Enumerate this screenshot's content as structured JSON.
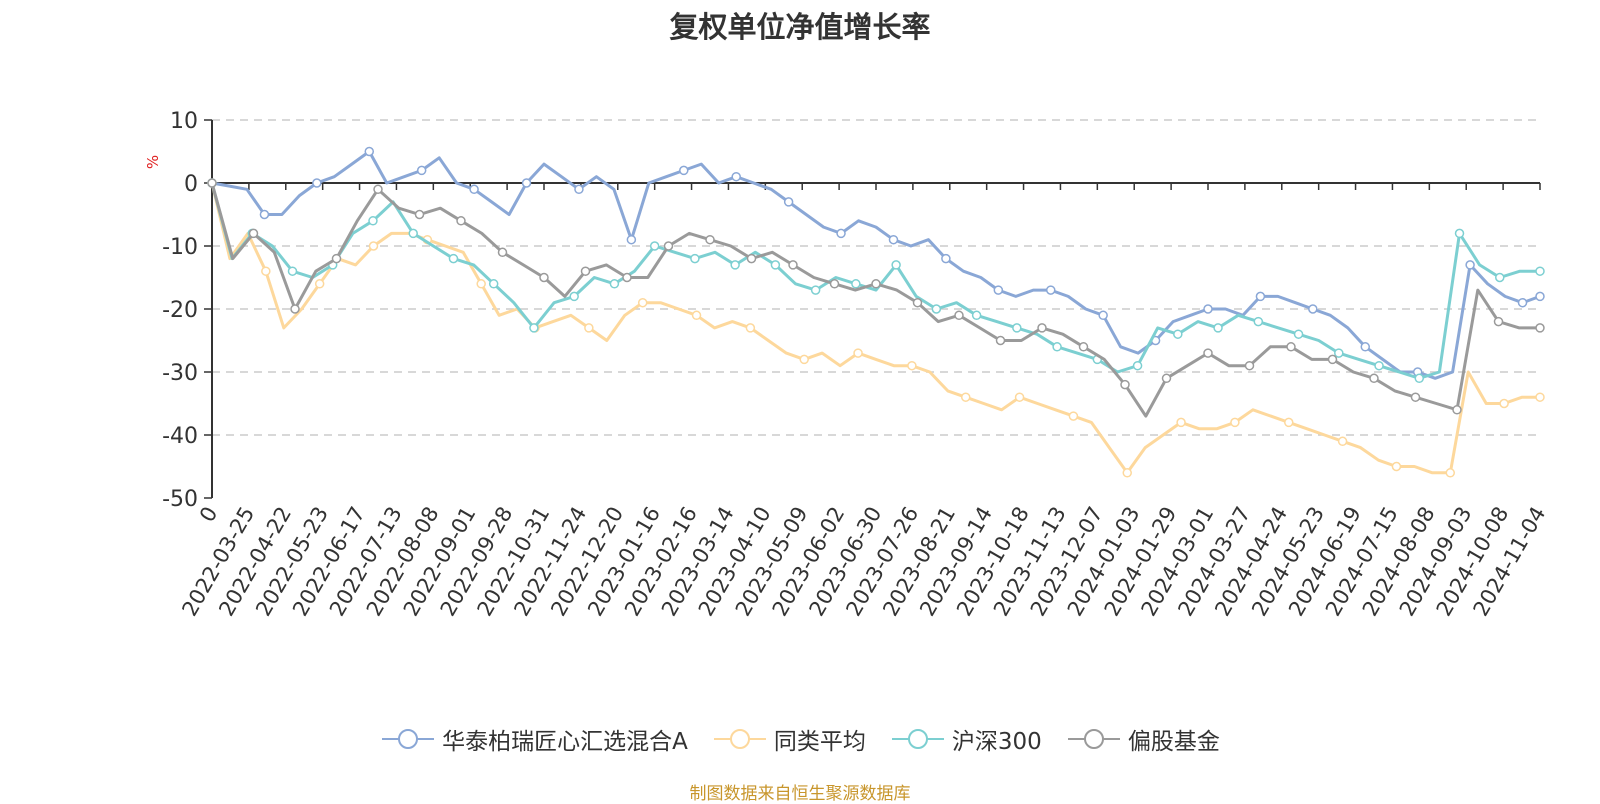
{
  "chart_data": {
    "type": "line",
    "title": "复权单位净值增长率",
    "ylabel": "%",
    "ylim": [
      -50,
      10
    ],
    "yticks": [
      10,
      0,
      -10,
      -20,
      -30,
      -40,
      -50
    ],
    "x_tick_labels": [
      "0",
      "2022-03-25",
      "2022-04-22",
      "2022-05-23",
      "2022-06-17",
      "2022-07-13",
      "2022-08-08",
      "2022-09-01",
      "2022-09-28",
      "2022-10-31",
      "2022-11-24",
      "2022-12-20",
      "2023-01-16",
      "2023-02-16",
      "2023-03-14",
      "2023-04-10",
      "2023-05-09",
      "2023-06-02",
      "2023-06-30",
      "2023-07-26",
      "2023-08-21",
      "2023-09-14",
      "2023-10-18",
      "2023-11-13",
      "2023-12-07",
      "2024-01-03",
      "2024-01-29",
      "2024-03-01",
      "2024-03-27",
      "2024-04-24",
      "2024-05-23",
      "2024-06-19",
      "2024-07-15",
      "2024-08-08",
      "2024-09-03",
      "2024-10-08",
      "2024-11-04"
    ],
    "grid": true,
    "legend_position": "bottom",
    "series": [
      {
        "name": "华泰柏瑞匠心汇选混合A",
        "color": "#8aa7d6",
        "values": [
          0,
          -0.5,
          -1,
          -5,
          -5,
          -2,
          0,
          1,
          3,
          5,
          0,
          1,
          2,
          4,
          0,
          -1,
          -3,
          -5,
          0,
          3,
          1,
          -1,
          1,
          -1,
          -9,
          0,
          1,
          2,
          3,
          0,
          1,
          0,
          -1,
          -3,
          -5,
          -7,
          -8,
          -6,
          -7,
          -9,
          -10,
          -9,
          -12,
          -14,
          -15,
          -17,
          -18,
          -17,
          -17,
          -18,
          -20,
          -21,
          -26,
          -27,
          -25,
          -22,
          -21,
          -20,
          -20,
          -21,
          -18,
          -18,
          -19,
          -20,
          -21,
          -23,
          -26,
          -28,
          -30,
          -30,
          -31,
          -30,
          -13,
          -16,
          -18,
          -19,
          -18
        ]
      },
      {
        "name": "同类平均",
        "color": "#fdd89c",
        "values": [
          0,
          -12,
          -8,
          -14,
          -23,
          -20,
          -16,
          -12,
          -13,
          -10,
          -8,
          -8,
          -9,
          -10,
          -11,
          -16,
          -21,
          -20,
          -23,
          -22,
          -21,
          -23,
          -25,
          -21,
          -19,
          -19,
          -20,
          -21,
          -23,
          -22,
          -23,
          -25,
          -27,
          -28,
          -27,
          -29,
          -27,
          -28,
          -29,
          -29,
          -30,
          -33,
          -34,
          -35,
          -36,
          -34,
          -35,
          -36,
          -37,
          -38,
          -42,
          -46,
          -42,
          -40,
          -38,
          -39,
          -39,
          -38,
          -36,
          -37,
          -38,
          -39,
          -40,
          -41,
          -42,
          -44,
          -45,
          -45,
          -46,
          -46,
          -30,
          -35,
          -35,
          -34,
          -34
        ]
      },
      {
        "name": "沪深300",
        "color": "#7ccfd1",
        "values": [
          0,
          -12,
          -8,
          -10,
          -14,
          -15,
          -13,
          -8,
          -6,
          -3,
          -8,
          -10,
          -12,
          -13,
          -16,
          -19,
          -23,
          -19,
          -18,
          -15,
          -16,
          -14,
          -10,
          -11,
          -12,
          -11,
          -13,
          -11,
          -13,
          -16,
          -17,
          -15,
          -16,
          -17,
          -13,
          -18,
          -20,
          -19,
          -21,
          -22,
          -23,
          -24,
          -26,
          -27,
          -28,
          -30,
          -29,
          -23,
          -24,
          -22,
          -23,
          -21,
          -22,
          -23,
          -24,
          -25,
          -27,
          -28,
          -29,
          -30,
          -31,
          -30,
          -8,
          -13,
          -15,
          -14,
          -14
        ]
      },
      {
        "name": "偏股基金",
        "color": "#9a9a9a",
        "values": [
          0,
          -12,
          -8,
          -11,
          -20,
          -14,
          -12,
          -6,
          -1,
          -4,
          -5,
          -4,
          -6,
          -8,
          -11,
          -13,
          -15,
          -18,
          -14,
          -13,
          -15,
          -15,
          -10,
          -8,
          -9,
          -10,
          -12,
          -11,
          -13,
          -15,
          -16,
          -17,
          -16,
          -17,
          -19,
          -22,
          -21,
          -23,
          -25,
          -25,
          -23,
          -24,
          -26,
          -28,
          -32,
          -37,
          -31,
          -29,
          -27,
          -29,
          -29,
          -26,
          -26,
          -28,
          -28,
          -30,
          -31,
          -33,
          -34,
          -35,
          -36,
          -17,
          -22,
          -23,
          -23
        ]
      }
    ]
  },
  "legend": [
    "华泰柏瑞匠心汇选混合A",
    "同类平均",
    "沪深300",
    "偏股基金"
  ],
  "source_text": "制图数据来自恒生聚源数据库"
}
